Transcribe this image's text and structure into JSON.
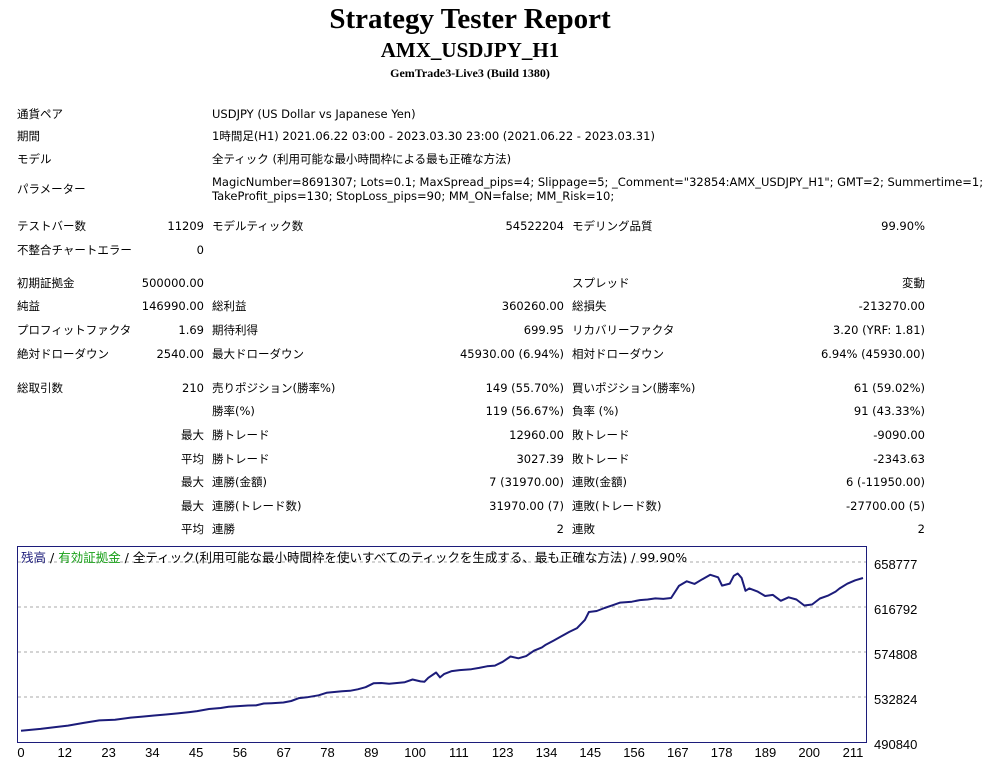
{
  "report": {
    "title": "Strategy Tester Report",
    "subtitle": "AMX_USDJPY_H1",
    "build": "GemTrade3-Live3 (Build 1380)"
  },
  "settings": {
    "symbol_label": "通貨ペア",
    "symbol_value": "USDJPY (US Dollar vs Japanese Yen)",
    "period_label": "期間",
    "period_value": "1時間足(H1) 2021.06.22 03:00 - 2023.03.30 23:00 (2021.06.22 - 2023.03.31)",
    "model_label": "モデル",
    "model_value": "全ティック (利用可能な最小時間枠による最も正確な方法)",
    "params_label": "パラメーター",
    "params_line1": "MagicNumber=8691307; Lots=0.1; MaxSpread_pips=4; Slippage=5; _Comment=\"32854:AMX_USDJPY_H1\"; GMT=2; Summertime=1;",
    "params_line2": "TakeProfit_pips=130; StopLoss_pips=90; MM_ON=false; MM_Risk=10;"
  },
  "stats": {
    "bars_label": "テストバー数",
    "bars_value": "11209",
    "ticks_label": "モデルティック数",
    "ticks_value": "54522204",
    "quality_label": "モデリング品質",
    "quality_value": "99.90%",
    "mismatch_label": "不整合チャートエラー",
    "mismatch_value": "0",
    "deposit_label": "初期証拠金",
    "deposit_value": "500000.00",
    "spread_label": "スプレッド",
    "spread_value": "変動",
    "net_label": "純益",
    "net_value": "146990.00",
    "gross_profit_label": "総利益",
    "gross_profit_value": "360260.00",
    "gross_loss_label": "総損失",
    "gross_loss_value": "-213270.00",
    "pf_label": "プロフィットファクタ",
    "pf_value": "1.69",
    "expected_label": "期待利得",
    "expected_value": "699.95",
    "recovery_label": "リカバリーファクタ",
    "recovery_value": "3.20 (YRF: 1.81)",
    "abs_dd_label": "絶対ドローダウン",
    "abs_dd_value": "2540.00",
    "max_dd_label": "最大ドローダウン",
    "max_dd_value": "45930.00 (6.94%)",
    "rel_dd_label": "相対ドローダウン",
    "rel_dd_value": "6.94% (45930.00)",
    "trades_label": "総取引数",
    "trades_value": "210",
    "short_label": "売りポジション(勝率%)",
    "short_value": "149 (55.70%)",
    "long_label": "買いポジション(勝率%)",
    "long_value": "61 (59.02%)",
    "win_rate_label": "勝率(%)",
    "win_rate_value": "119 (56.67%)",
    "loss_rate_label": "負率 (%)",
    "loss_rate_value": "91 (43.33%)",
    "max_label": "最大",
    "avg_label": "平均",
    "max_win_label": "勝トレード",
    "max_win_value": "12960.00",
    "max_loss_label": "敗トレード",
    "max_loss_value": "-9090.00",
    "avg_win_label": "勝トレード",
    "avg_win_value": "3027.39",
    "avg_loss_label": "敗トレード",
    "avg_loss_value": "-2343.63",
    "max_cons_win_amt_label": "連勝(金額)",
    "max_cons_win_amt_value": "7 (31970.00)",
    "max_cons_loss_amt_label": "連敗(金額)",
    "max_cons_loss_amt_value": "6 (-11950.00)",
    "max_cons_win_cnt_label": "連勝(トレード数)",
    "max_cons_win_cnt_value": "31970.00 (7)",
    "max_cons_loss_cnt_label": "連敗(トレード数)",
    "max_cons_loss_cnt_value": "-27700.00 (5)",
    "avg_cons_win_label": "連勝",
    "avg_cons_win_value": "2",
    "avg_cons_loss_label": "連敗",
    "avg_cons_loss_value": "2"
  },
  "colors": {
    "balance": "#1c1c7a",
    "equity": "#18a018",
    "grid": "#a9a9a9"
  },
  "chart_data": {
    "type": "line",
    "legend": {
      "balance": "残高",
      "sep1": " / ",
      "equity": "有効証拠金",
      "sep2": " / ",
      "model": "全ティック(利用可能な最小時間枠を使いすべてのティックを生成する、最も正確な方法)",
      "sep3": " / ",
      "quality": "99.90%"
    },
    "y_ticks": [
      "658777",
      "616792",
      "574808",
      "532824",
      "490840"
    ],
    "x_ticks": [
      "0",
      "12",
      "23",
      "34",
      "45",
      "56",
      "67",
      "78",
      "89",
      "100",
      "111",
      "123",
      "134",
      "145",
      "156",
      "167",
      "178",
      "189",
      "200",
      "211"
    ],
    "ylim": [
      490840,
      658777
    ],
    "xlim": [
      0,
      215
    ],
    "grid": true,
    "series": [
      {
        "name": "残高",
        "x": [
          0,
          5,
          9,
          12,
          16,
          20,
          24,
          28,
          31,
          34,
          37,
          40,
          43,
          45,
          48,
          51,
          53,
          56,
          58,
          60,
          62,
          64,
          67,
          69,
          71,
          73,
          76,
          78,
          80,
          82,
          84,
          86,
          88,
          90,
          92,
          94,
          96,
          98,
          100,
          102,
          103,
          104,
          106,
          107,
          108,
          110,
          112,
          115,
          117,
          119,
          121,
          123,
          125,
          127,
          129,
          131,
          133,
          134,
          136,
          138,
          140,
          142,
          144,
          145,
          147,
          149,
          151,
          153,
          156,
          158,
          160,
          162,
          164,
          166,
          168,
          170,
          172,
          174,
          176,
          178,
          179,
          181,
          182,
          183,
          184,
          185,
          186,
          188,
          190,
          192,
          194,
          196,
          198,
          200,
          202,
          204,
          206,
          208,
          209,
          211,
          213,
          215
        ],
        "y": [
          500500,
          502200,
          504000,
          505300,
          507800,
          510200,
          510800,
          512800,
          513700,
          514800,
          515700,
          516700,
          518000,
          518900,
          520900,
          521800,
          522900,
          523700,
          524100,
          524200,
          526000,
          526300,
          527000,
          528400,
          531100,
          531800,
          533700,
          536100,
          536800,
          537600,
          537900,
          539300,
          541300,
          545000,
          545300,
          544600,
          545300,
          546000,
          548500,
          546800,
          546400,
          550100,
          555100,
          550500,
          553600,
          556400,
          557400,
          558200,
          559400,
          560900,
          561600,
          565100,
          570100,
          568400,
          570500,
          575600,
          578700,
          581200,
          585000,
          589100,
          593200,
          596800,
          604500,
          611900,
          612800,
          615600,
          618200,
          620700,
          621500,
          623000,
          623600,
          624600,
          624200,
          625000,
          636400,
          640700,
          638200,
          642600,
          646800,
          644400,
          636600,
          638500,
          645800,
          648000,
          643900,
          631800,
          634000,
          631200,
          626900,
          627900,
          622400,
          625700,
          623600,
          618000,
          618900,
          624500,
          627200,
          631000,
          633900,
          638400,
          641600,
          643800
        ]
      }
    ]
  }
}
